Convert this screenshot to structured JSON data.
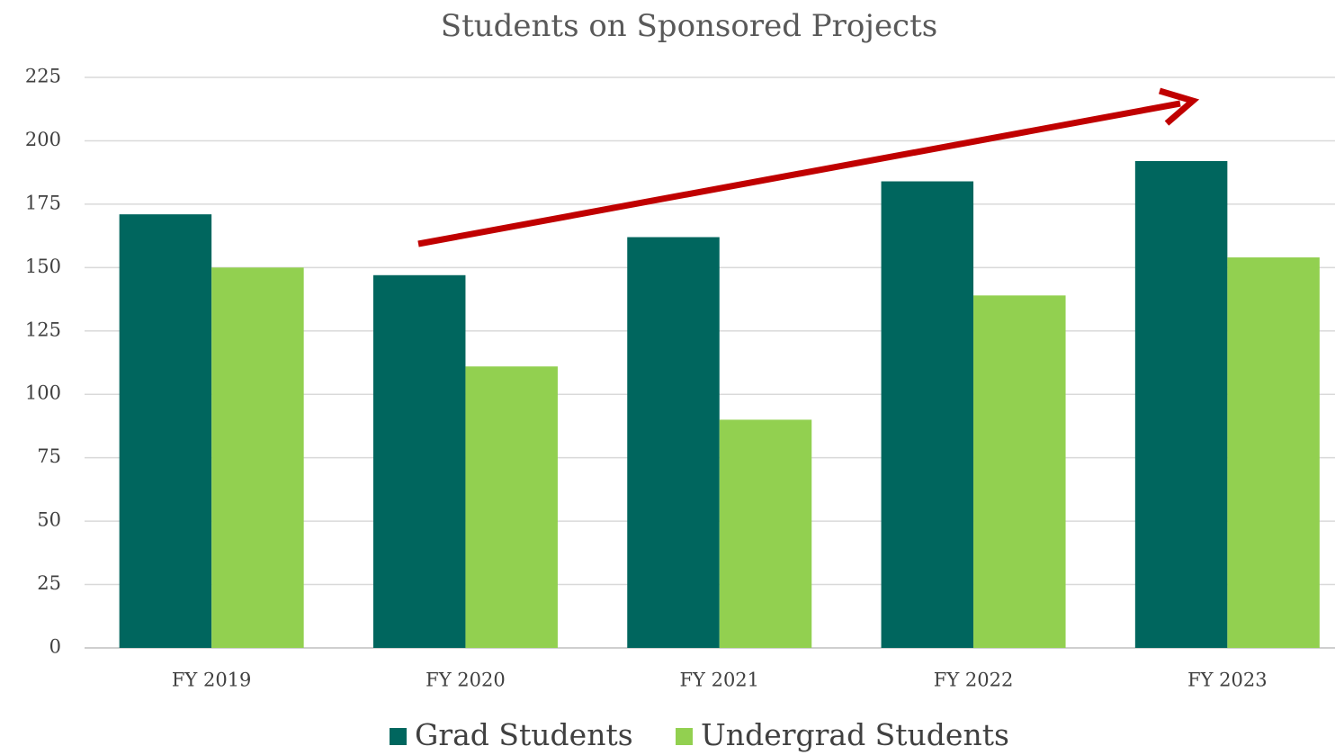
{
  "chart_data": {
    "type": "bar",
    "title": "Students on Sponsored Projects",
    "categories": [
      "FY 2019",
      "FY 2020",
      "FY 2021",
      "FY 2022",
      "FY 2023"
    ],
    "series": [
      {
        "name": "Grad Students",
        "color": "#00665e",
        "values": [
          171,
          147,
          162,
          184,
          192
        ]
      },
      {
        "name": "Undergrad Students",
        "color": "#92d050",
        "values": [
          150,
          111,
          90,
          139,
          154
        ]
      }
    ],
    "ylim": [
      0,
      225
    ],
    "yticks": [
      0,
      25,
      50,
      75,
      100,
      125,
      150,
      175,
      200,
      225
    ],
    "grid": true,
    "legend": "bottom"
  }
}
